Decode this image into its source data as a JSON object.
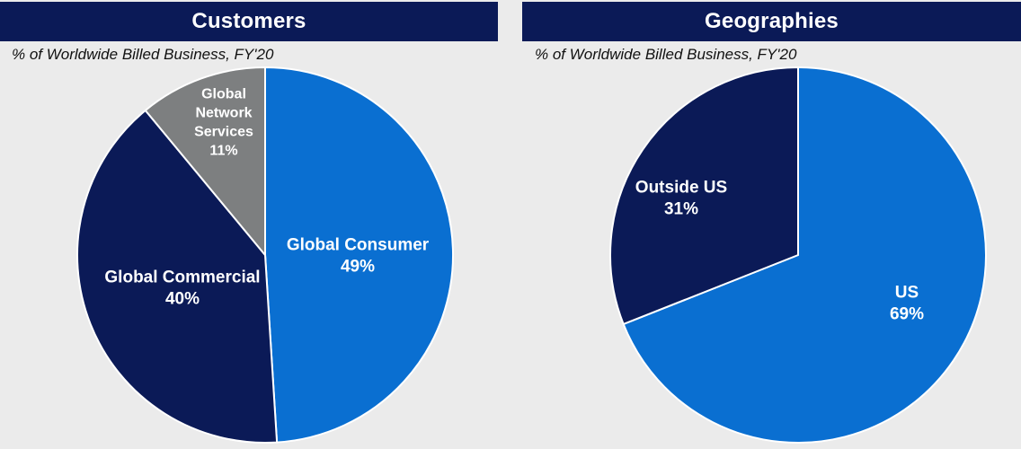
{
  "chart_data": [
    {
      "type": "pie",
      "title": "Customers",
      "subtitle": "% of Worldwide Billed Business, FY'20",
      "slices": [
        {
          "label_lines": [
            "Global Consumer"
          ],
          "value": 49,
          "value_label": "49%",
          "color": "#0a6fd1"
        },
        {
          "label_lines": [
            "Global Commercial"
          ],
          "value": 40,
          "value_label": "40%",
          "color": "#0b1a57"
        },
        {
          "label_lines": [
            "Global",
            "Network",
            "Services"
          ],
          "value": 11,
          "value_label": "11%",
          "color": "#7d7f80"
        }
      ]
    },
    {
      "type": "pie",
      "title": "Geographies",
      "subtitle": "% of Worldwide Billed Business, FY'20",
      "slices": [
        {
          "label_lines": [
            "US"
          ],
          "value": 69,
          "value_label": "69%",
          "color": "#0a6fd1"
        },
        {
          "label_lines": [
            "Outside US"
          ],
          "value": 31,
          "value_label": "31%",
          "color": "#0b1a57"
        }
      ]
    }
  ]
}
